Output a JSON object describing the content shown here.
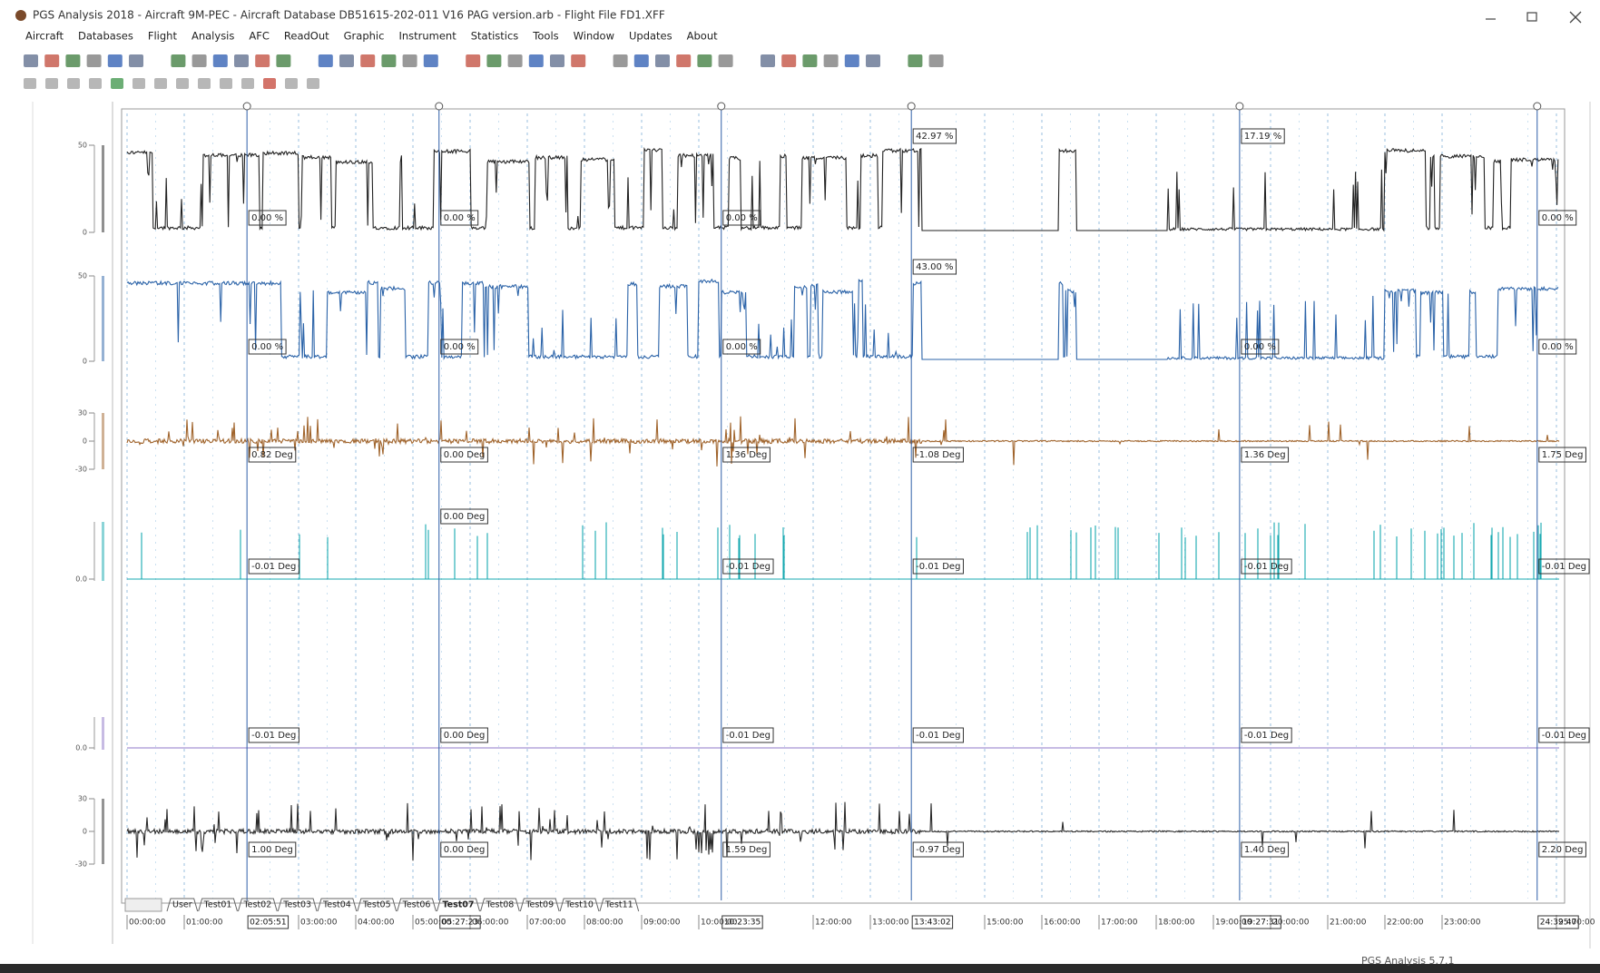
{
  "window": {
    "title": "PGS Analysis 2018 - Aircraft 9M-PEC - Aircraft Database DB51615-202-011 V16 PAG version.arb - Flight File FD1.XFF",
    "status": "PGS Analysis 5.7.1"
  },
  "menu": [
    "Aircraft",
    "Databases",
    "Flight",
    "Analysis",
    "AFC",
    "ReadOut",
    "Graphic",
    "Instrument",
    "Statistics",
    "Tools",
    "Window",
    "Updates",
    "About"
  ],
  "tabs": [
    "User",
    "Test01",
    "Test02",
    "Test03",
    "Test04",
    "Test05",
    "Test06",
    "Test07",
    "Test08",
    "Test09",
    "Test10",
    "Test11"
  ],
  "active_tab": 7,
  "time_axis": {
    "labels": [
      "00:00:00",
      "01:00:00",
      "03:00:00",
      "04:00:00",
      "05:00:00",
      "06:00:00",
      "07:00:00",
      "08:00:00",
      "09:00:00",
      "10:00:00",
      "12:00:00",
      "13:00:00",
      "15:00:00",
      "16:00:00",
      "17:00:00",
      "18:00:00",
      "19:00:00",
      "20:00:00",
      "21:00:00",
      "22:00:00",
      "23:00:00",
      "25:00:00"
    ],
    "cursors": [
      "02:05:51",
      "05:27:23",
      "10:23:35",
      "13:43:02",
      "19:27:31",
      "24:39:47"
    ]
  },
  "channels": [
    {
      "color": "#222222",
      "scale": [
        "50",
        "0"
      ],
      "readouts": [
        "0.00 %",
        "0.00 %",
        "0.00 %",
        "42.97 %",
        "17.19 %",
        "0.00 %"
      ]
    },
    {
      "color": "#2b63a8",
      "scale": [
        "50",
        "0"
      ],
      "readouts": [
        "0.00 %",
        "0.00 %",
        "0.00 %",
        "43.00 %",
        "0.00 %",
        "0.00 %"
      ]
    },
    {
      "color": "#a0642c",
      "scale": [
        "30",
        "0",
        "-30"
      ],
      "readouts": [
        "0.82 Deg",
        "0.00 Deg",
        "1.36 Deg",
        "-1.08 Deg",
        "1.36 Deg",
        "1.75 Deg"
      ]
    },
    {
      "color": "#17a9b0",
      "scale": [
        "0.0"
      ],
      "readouts": [
        "-0.01 Deg",
        "0.00 Deg",
        "-0.01 Deg",
        "-0.01 Deg",
        "-0.01 Deg",
        "-0.01 Deg"
      ]
    },
    {
      "color": "#8f78c8",
      "scale": [
        "0.0"
      ],
      "readouts": [
        "-0.01 Deg",
        "0.00 Deg",
        "-0.01 Deg",
        "-0.01 Deg",
        "-0.01 Deg",
        "-0.01 Deg"
      ]
    },
    {
      "color": "#2a2a2a",
      "scale": [
        "30",
        "0",
        "-30"
      ],
      "readouts": [
        "1.00 Deg",
        "0.00 Deg",
        "1.59 Deg",
        "-0.97 Deg",
        "1.40 Deg",
        "2.20 Deg"
      ]
    }
  ]
}
